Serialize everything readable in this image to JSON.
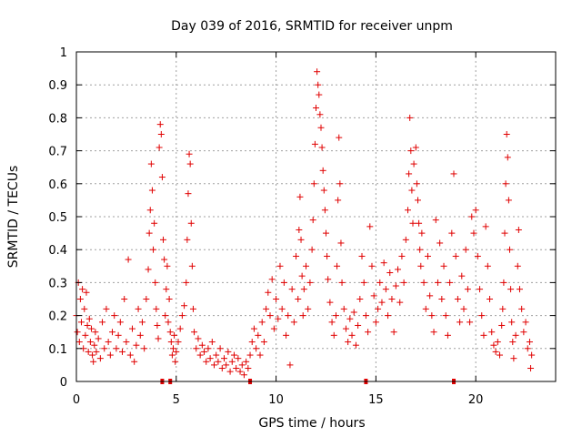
{
  "chart_data": {
    "type": "scatter",
    "title": "Day 039 of 2016, SRMTID for receiver unpm",
    "xlabel": "GPS time / hours",
    "ylabel": "SRMTID / TECUs",
    "xlim": [
      0,
      24
    ],
    "ylim": [
      0,
      1
    ],
    "xticks": [
      0,
      5,
      10,
      15,
      20
    ],
    "xtick_labels": [
      "0",
      "5",
      "10",
      "15",
      "20"
    ],
    "yticks": [
      0,
      0.1,
      0.2,
      0.3,
      0.4,
      0.5,
      0.6,
      0.7,
      0.8,
      0.9,
      1
    ],
    "ytick_labels": [
      "0",
      "0.1",
      "0.2",
      "0.3",
      "0.4",
      "0.5",
      "0.6",
      "0.7",
      "0.8",
      "0.9",
      "1"
    ],
    "grid": true,
    "marker": "+",
    "color": "#e00000",
    "series": [
      {
        "name": "SRMTID",
        "points": [
          [
            0.0,
            0.2
          ],
          [
            0.05,
            0.15
          ],
          [
            0.1,
            0.3
          ],
          [
            0.15,
            0.12
          ],
          [
            0.2,
            0.25
          ],
          [
            0.25,
            0.18
          ],
          [
            0.3,
            0.28
          ],
          [
            0.35,
            0.1
          ],
          [
            0.4,
            0.22
          ],
          [
            0.45,
            0.14
          ],
          [
            0.5,
            0.27
          ],
          [
            0.55,
            0.17
          ],
          [
            0.6,
            0.09
          ],
          [
            0.65,
            0.19
          ],
          [
            0.7,
            0.12
          ],
          [
            0.75,
            0.16
          ],
          [
            0.8,
            0.08
          ],
          [
            0.85,
            0.06
          ],
          [
            0.9,
            0.11
          ],
          [
            0.95,
            0.15
          ],
          [
            1.0,
            0.09
          ],
          [
            1.1,
            0.13
          ],
          [
            1.2,
            0.07
          ],
          [
            1.3,
            0.18
          ],
          [
            1.4,
            0.1
          ],
          [
            1.5,
            0.22
          ],
          [
            1.6,
            0.12
          ],
          [
            1.7,
            0.08
          ],
          [
            1.8,
            0.15
          ],
          [
            1.9,
            0.2
          ],
          [
            2.0,
            0.1
          ],
          [
            2.1,
            0.14
          ],
          [
            2.2,
            0.18
          ],
          [
            2.3,
            0.09
          ],
          [
            2.4,
            0.25
          ],
          [
            2.5,
            0.12
          ],
          [
            2.6,
            0.37
          ],
          [
            2.7,
            0.08
          ],
          [
            2.8,
            0.16
          ],
          [
            2.9,
            0.06
          ],
          [
            3.0,
            0.11
          ],
          [
            3.1,
            0.22
          ],
          [
            3.2,
            0.14
          ],
          [
            3.3,
            0.18
          ],
          [
            3.4,
            0.1
          ],
          [
            3.5,
            0.25
          ],
          [
            3.6,
            0.34
          ],
          [
            3.65,
            0.45
          ],
          [
            3.7,
            0.52
          ],
          [
            3.75,
            0.66
          ],
          [
            3.8,
            0.58
          ],
          [
            3.85,
            0.4
          ],
          [
            3.9,
            0.48
          ],
          [
            3.95,
            0.3
          ],
          [
            4.0,
            0.22
          ],
          [
            4.05,
            0.17
          ],
          [
            4.1,
            0.13
          ],
          [
            4.15,
            0.71
          ],
          [
            4.2,
            0.78
          ],
          [
            4.25,
            0.75
          ],
          [
            4.3,
            0.62
          ],
          [
            4.35,
            0.43
          ],
          [
            4.4,
            0.37
          ],
          [
            4.45,
            0.2
          ],
          [
            4.5,
            0.28
          ],
          [
            4.55,
            0.35
          ],
          [
            4.6,
            0.18
          ],
          [
            4.65,
            0.25
          ],
          [
            4.7,
            0.15
          ],
          [
            4.75,
            0.12
          ],
          [
            4.8,
            0.08
          ],
          [
            4.85,
            0.1
          ],
          [
            4.9,
            0.14
          ],
          [
            4.95,
            0.06
          ],
          [
            5.0,
            0.09
          ],
          [
            5.1,
            0.12
          ],
          [
            5.2,
            0.16
          ],
          [
            5.3,
            0.2
          ],
          [
            5.4,
            0.23
          ],
          [
            5.5,
            0.3
          ],
          [
            5.55,
            0.43
          ],
          [
            5.6,
            0.57
          ],
          [
            5.65,
            0.69
          ],
          [
            5.7,
            0.66
          ],
          [
            5.75,
            0.48
          ],
          [
            5.8,
            0.35
          ],
          [
            5.85,
            0.22
          ],
          [
            5.9,
            0.15
          ],
          [
            6.0,
            0.1
          ],
          [
            6.1,
            0.13
          ],
          [
            6.2,
            0.08
          ],
          [
            6.3,
            0.11
          ],
          [
            6.4,
            0.09
          ],
          [
            6.5,
            0.06
          ],
          [
            6.6,
            0.1
          ],
          [
            6.7,
            0.07
          ],
          [
            6.8,
            0.12
          ],
          [
            6.9,
            0.05
          ],
          [
            7.0,
            0.08
          ],
          [
            7.1,
            0.06
          ],
          [
            7.2,
            0.1
          ],
          [
            7.3,
            0.04
          ],
          [
            7.4,
            0.07
          ],
          [
            7.5,
            0.05
          ],
          [
            7.6,
            0.09
          ],
          [
            7.7,
            0.03
          ],
          [
            7.8,
            0.06
          ],
          [
            7.9,
            0.08
          ],
          [
            8.0,
            0.04
          ],
          [
            8.1,
            0.07
          ],
          [
            8.2,
            0.03
          ],
          [
            8.3,
            0.05
          ],
          [
            8.4,
            0.02
          ],
          [
            8.5,
            0.06
          ],
          [
            8.6,
            0.04
          ],
          [
            8.7,
            0.08
          ],
          [
            8.8,
            0.12
          ],
          [
            8.9,
            0.16
          ],
          [
            9.0,
            0.1
          ],
          [
            9.1,
            0.14
          ],
          [
            9.2,
            0.08
          ],
          [
            9.3,
            0.18
          ],
          [
            9.4,
            0.12
          ],
          [
            9.5,
            0.22
          ],
          [
            9.6,
            0.27
          ],
          [
            9.7,
            0.2
          ],
          [
            9.8,
            0.31
          ],
          [
            9.9,
            0.16
          ],
          [
            10.0,
            0.25
          ],
          [
            10.1,
            0.19
          ],
          [
            10.2,
            0.35
          ],
          [
            10.3,
            0.22
          ],
          [
            10.4,
            0.3
          ],
          [
            10.5,
            0.14
          ],
          [
            10.6,
            0.2
          ],
          [
            10.7,
            0.05
          ],
          [
            10.8,
            0.28
          ],
          [
            10.9,
            0.18
          ],
          [
            11.0,
            0.38
          ],
          [
            11.1,
            0.25
          ],
          [
            11.15,
            0.46
          ],
          [
            11.2,
            0.56
          ],
          [
            11.25,
            0.43
          ],
          [
            11.3,
            0.32
          ],
          [
            11.35,
            0.2
          ],
          [
            11.4,
            0.28
          ],
          [
            11.5,
            0.35
          ],
          [
            11.6,
            0.22
          ],
          [
            11.7,
            0.3
          ],
          [
            11.8,
            0.4
          ],
          [
            11.85,
            0.49
          ],
          [
            11.9,
            0.6
          ],
          [
            11.95,
            0.72
          ],
          [
            12.0,
            0.83
          ],
          [
            12.05,
            0.94
          ],
          [
            12.1,
            0.9
          ],
          [
            12.15,
            0.87
          ],
          [
            12.2,
            0.81
          ],
          [
            12.25,
            0.77
          ],
          [
            12.3,
            0.71
          ],
          [
            12.35,
            0.64
          ],
          [
            12.4,
            0.58
          ],
          [
            12.45,
            0.52
          ],
          [
            12.5,
            0.45
          ],
          [
            12.55,
            0.38
          ],
          [
            12.6,
            0.31
          ],
          [
            12.7,
            0.24
          ],
          [
            12.8,
            0.18
          ],
          [
            12.9,
            0.14
          ],
          [
            13.0,
            0.2
          ],
          [
            13.05,
            0.35
          ],
          [
            13.1,
            0.55
          ],
          [
            13.15,
            0.74
          ],
          [
            13.2,
            0.6
          ],
          [
            13.25,
            0.42
          ],
          [
            13.3,
            0.3
          ],
          [
            13.4,
            0.22
          ],
          [
            13.5,
            0.16
          ],
          [
            13.6,
            0.12
          ],
          [
            13.7,
            0.19
          ],
          [
            13.8,
            0.14
          ],
          [
            13.9,
            0.21
          ],
          [
            14.0,
            0.11
          ],
          [
            14.1,
            0.17
          ],
          [
            14.2,
            0.25
          ],
          [
            14.3,
            0.38
          ],
          [
            14.4,
            0.3
          ],
          [
            14.5,
            0.2
          ],
          [
            14.6,
            0.15
          ],
          [
            14.7,
            0.47
          ],
          [
            14.8,
            0.35
          ],
          [
            14.9,
            0.26
          ],
          [
            15.0,
            0.18
          ],
          [
            15.1,
            0.22
          ],
          [
            15.2,
            0.3
          ],
          [
            15.3,
            0.24
          ],
          [
            15.4,
            0.36
          ],
          [
            15.5,
            0.28
          ],
          [
            15.6,
            0.2
          ],
          [
            15.7,
            0.33
          ],
          [
            15.8,
            0.25
          ],
          [
            15.9,
            0.15
          ],
          [
            16.0,
            0.29
          ],
          [
            16.1,
            0.34
          ],
          [
            16.2,
            0.24
          ],
          [
            16.3,
            0.38
          ],
          [
            16.4,
            0.3
          ],
          [
            16.5,
            0.43
          ],
          [
            16.6,
            0.52
          ],
          [
            16.65,
            0.63
          ],
          [
            16.7,
            0.8
          ],
          [
            16.75,
            0.7
          ],
          [
            16.8,
            0.58
          ],
          [
            16.85,
            0.48
          ],
          [
            16.9,
            0.66
          ],
          [
            17.0,
            0.71
          ],
          [
            17.05,
            0.6
          ],
          [
            17.1,
            0.55
          ],
          [
            17.15,
            0.48
          ],
          [
            17.2,
            0.4
          ],
          [
            17.25,
            0.35
          ],
          [
            17.3,
            0.45
          ],
          [
            17.4,
            0.3
          ],
          [
            17.5,
            0.22
          ],
          [
            17.6,
            0.38
          ],
          [
            17.7,
            0.26
          ],
          [
            17.8,
            0.2
          ],
          [
            17.9,
            0.15
          ],
          [
            18.0,
            0.49
          ],
          [
            18.1,
            0.3
          ],
          [
            18.2,
            0.42
          ],
          [
            18.3,
            0.25
          ],
          [
            18.4,
            0.35
          ],
          [
            18.5,
            0.2
          ],
          [
            18.6,
            0.14
          ],
          [
            18.7,
            0.3
          ],
          [
            18.8,
            0.45
          ],
          [
            18.9,
            0.63
          ],
          [
            19.0,
            0.38
          ],
          [
            19.1,
            0.25
          ],
          [
            19.2,
            0.18
          ],
          [
            19.3,
            0.32
          ],
          [
            19.4,
            0.22
          ],
          [
            19.5,
            0.4
          ],
          [
            19.6,
            0.28
          ],
          [
            19.7,
            0.18
          ],
          [
            19.8,
            0.5
          ],
          [
            19.9,
            0.45
          ],
          [
            20.0,
            0.52
          ],
          [
            20.1,
            0.38
          ],
          [
            20.2,
            0.28
          ],
          [
            20.3,
            0.2
          ],
          [
            20.4,
            0.14
          ],
          [
            20.5,
            0.47
          ],
          [
            20.6,
            0.35
          ],
          [
            20.7,
            0.25
          ],
          [
            20.8,
            0.15
          ],
          [
            20.9,
            0.11
          ],
          [
            21.0,
            0.09
          ],
          [
            21.1,
            0.12
          ],
          [
            21.2,
            0.08
          ],
          [
            21.3,
            0.17
          ],
          [
            21.35,
            0.22
          ],
          [
            21.4,
            0.3
          ],
          [
            21.45,
            0.45
          ],
          [
            21.5,
            0.6
          ],
          [
            21.55,
            0.75
          ],
          [
            21.6,
            0.68
          ],
          [
            21.65,
            0.55
          ],
          [
            21.7,
            0.4
          ],
          [
            21.75,
            0.28
          ],
          [
            21.8,
            0.18
          ],
          [
            21.85,
            0.12
          ],
          [
            21.9,
            0.07
          ],
          [
            22.0,
            0.14
          ],
          [
            22.1,
            0.35
          ],
          [
            22.15,
            0.46
          ],
          [
            22.2,
            0.28
          ],
          [
            22.3,
            0.22
          ],
          [
            22.4,
            0.15
          ],
          [
            22.5,
            0.18
          ],
          [
            22.6,
            0.1
          ],
          [
            22.7,
            0.12
          ],
          [
            22.75,
            0.04
          ],
          [
            22.8,
            0.08
          ]
        ]
      }
    ],
    "gap_markers_x": [
      4.3,
      4.7,
      8.7,
      14.5,
      18.9
    ]
  }
}
